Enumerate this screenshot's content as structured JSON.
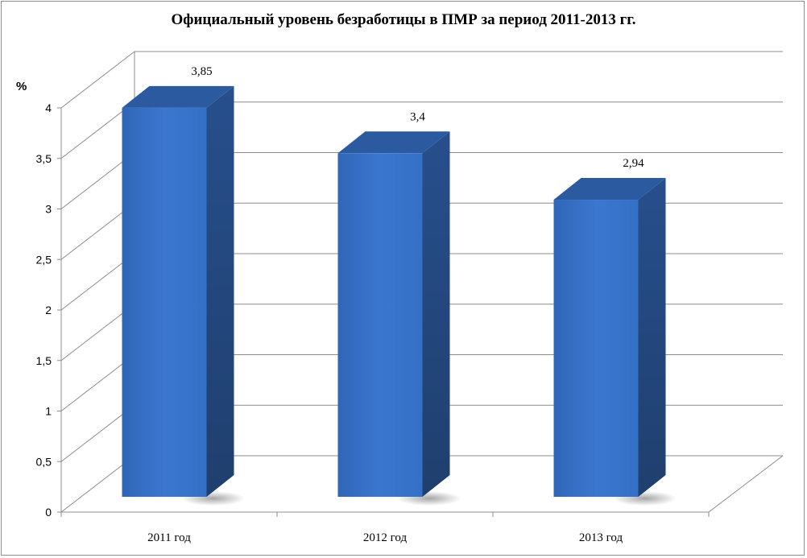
{
  "chart_data": {
    "type": "bar",
    "title": "Официальный уровень безработицы в ПМР за период 2011-2013 гг.",
    "ylabel": "%",
    "xlabel": "",
    "categories": [
      "2011 год",
      "2012 год",
      "2013 год"
    ],
    "values": [
      3.85,
      3.4,
      2.94
    ],
    "data_labels": [
      "3,85",
      "3,4",
      "2,94"
    ],
    "ylim": [
      0,
      4
    ],
    "yticks": [
      0,
      0.5,
      1,
      1.5,
      2,
      2.5,
      3,
      3.5,
      4
    ],
    "ytick_labels": [
      "0",
      "0,5",
      "1",
      "1,5",
      "2",
      "2,5",
      "3",
      "3,5",
      "4"
    ],
    "grid": true,
    "legend": "none",
    "style": "3d-column",
    "colors": {
      "bar_front": "#3c77cf",
      "bar_side": "#1f3f6e",
      "bar_top": "#2c5aa0",
      "grid": "#8c8c8c"
    }
  }
}
